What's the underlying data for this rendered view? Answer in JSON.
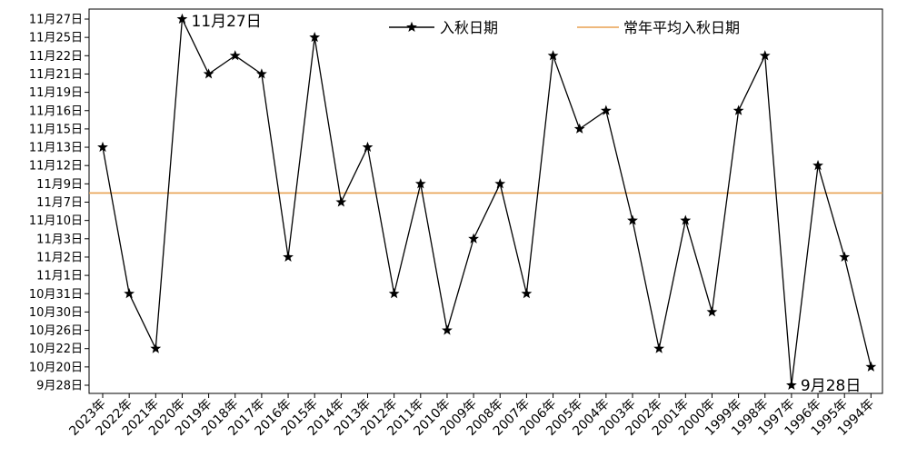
{
  "chart_data": {
    "type": "line",
    "title": "",
    "xlabel": "",
    "ylabel": "",
    "categories": [
      "2023年",
      "2022年",
      "2021年",
      "2020年",
      "2019年",
      "2018年",
      "2017年",
      "2016年",
      "2015年",
      "2014年",
      "2013年",
      "2012年",
      "2011年",
      "2010年",
      "2009年",
      "2008年",
      "2007年",
      "2006年",
      "2005年",
      "2004年",
      "2003年",
      "2002年",
      "2001年",
      "2000年",
      "1999年",
      "1998年",
      "1997年",
      "1996年",
      "1995年",
      "1994年"
    ],
    "y_tick_labels": [
      "9月28日",
      "10月20日",
      "10月22日",
      "10月26日",
      "10月30日",
      "10月31日",
      "11月1日",
      "11月2日",
      "11月3日",
      "11月10日",
      "11月7日",
      "11月9日",
      "11月12日",
      "11月13日",
      "11月15日",
      "11月16日",
      "11月19日",
      "11月21日",
      "11月22日",
      "11月25日",
      "11月27日"
    ],
    "series": [
      {
        "name": "入秋日期",
        "color": "#000000",
        "marker": "star",
        "values": [
          13,
          5,
          2,
          20,
          17,
          18,
          17,
          7,
          19,
          10,
          13,
          5,
          11,
          3,
          8,
          11,
          5,
          18,
          14,
          15,
          9,
          2,
          9,
          4,
          15,
          18,
          0,
          12,
          7,
          1
        ]
      }
    ],
    "reference_line": {
      "name": "常年平均入秋日期",
      "value": 10.5,
      "color": "#e8a050"
    },
    "annotations": [
      {
        "text": "11月27日",
        "category": "2020年",
        "value": 20
      },
      {
        "text": "9月28日",
        "category": "1997年",
        "value": 0
      }
    ],
    "legend_position": "top",
    "grid": false
  }
}
